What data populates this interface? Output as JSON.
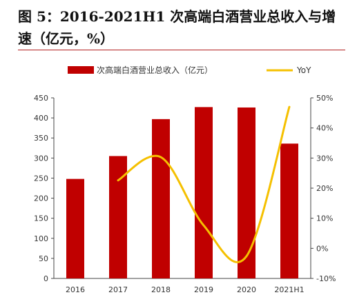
{
  "title": "图 5：2016-2021H1 次高端白酒营业总收入与增速（亿元，%）",
  "chart_data": {
    "type": "bar",
    "categories": [
      "2016",
      "2017",
      "2018",
      "2019",
      "2020",
      "2021H1"
    ],
    "series": [
      {
        "name": "次高端白酒营业总收入（亿元）",
        "type": "bar",
        "axis": "left",
        "color": "#c00000",
        "values": [
          248,
          305,
          397,
          427,
          426,
          336
        ]
      },
      {
        "name": "YoY",
        "type": "line",
        "axis": "right",
        "color": "#f5c000",
        "values": [
          null,
          22.6,
          30.3,
          7.6,
          -2.6,
          47.0
        ]
      }
    ],
    "ylim": [
      0,
      450
    ],
    "yticks": [
      0,
      50,
      100,
      150,
      200,
      250,
      300,
      350,
      400,
      450
    ],
    "y2lim": [
      -10,
      50
    ],
    "y2ticks": [
      "-10%",
      "0%",
      "10%",
      "20%",
      "30%",
      "40%",
      "50%"
    ],
    "legend_position": "top",
    "grid": false
  }
}
